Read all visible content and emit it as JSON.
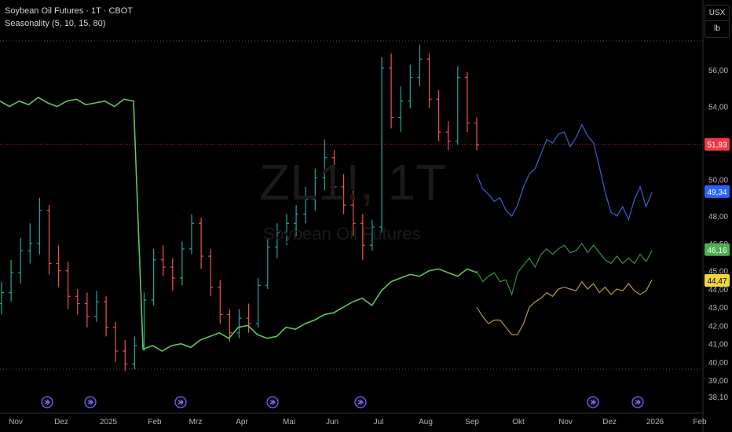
{
  "legend": {
    "line1": "Soybean Oil Futures · 1T · CBOT",
    "line2": "Seasonality  (5, 10, 15, 80)"
  },
  "watermark": {
    "symbol": "ZL1!, 1T",
    "name": "Soybean Oil Futures"
  },
  "units": {
    "currency": "USX",
    "unit": "lb"
  },
  "chart_data": {
    "type": "line",
    "ylim": [
      37.8,
      57.6
    ],
    "y_ticks": [
      "56,00",
      "54,00",
      "52,00",
      "50,00",
      "48,00",
      "46,50",
      "45,00",
      "44,00",
      "43,00",
      "42,00",
      "41,00",
      "40,00",
      "39,00",
      "38,10"
    ],
    "x_ticks": [
      "Nov",
      "Dez",
      "2025",
      "Feb",
      "Mrz",
      "Apr",
      "Mai",
      "Jun",
      "Jul",
      "Aug",
      "Sep",
      "Okt",
      "Nov",
      "Dez",
      "2026",
      "Feb"
    ],
    "price_labels": [
      {
        "value": 51.93,
        "text": "51,93",
        "color": "#f23645"
      },
      {
        "value": 49.34,
        "text": "49,34",
        "color": "#2962ff"
      },
      {
        "value": 46.16,
        "text": "46,16",
        "color": "#4caf50"
      },
      {
        "value": 44.47,
        "text": "44,47",
        "color": "#f5d63a"
      }
    ],
    "series": [
      {
        "kind": "ohlc",
        "values": [
          [
            43.2,
            44.4,
            42.6,
            43.8
          ],
          [
            43.8,
            45.6,
            43.3,
            44.9
          ],
          [
            44.9,
            46.8,
            44.3,
            46.1
          ],
          [
            46.1,
            47.6,
            45.4,
            46.5
          ],
          [
            46.5,
            49.0,
            45.9,
            48.3
          ],
          [
            48.3,
            48.6,
            44.8,
            45.4
          ],
          [
            45.4,
            46.4,
            44.1,
            45.0
          ],
          [
            45.0,
            45.5,
            42.9,
            43.6
          ],
          [
            43.6,
            44.0,
            42.6,
            43.2
          ],
          [
            43.2,
            43.8,
            41.9,
            42.5
          ],
          [
            42.5,
            43.9,
            42.2,
            43.3
          ],
          [
            43.3,
            43.6,
            41.4,
            41.9
          ],
          [
            41.9,
            42.2,
            40.0,
            40.6
          ],
          [
            40.6,
            41.2,
            39.5,
            39.9
          ],
          [
            39.9,
            41.4,
            39.6,
            40.9
          ],
          [
            40.9,
            43.8,
            40.6,
            43.4
          ],
          [
            43.4,
            46.2,
            43.1,
            45.6
          ],
          [
            45.6,
            46.4,
            44.7,
            45.2
          ],
          [
            45.2,
            45.7,
            43.9,
            44.6
          ],
          [
            44.6,
            46.6,
            44.2,
            46.2
          ],
          [
            46.2,
            48.1,
            45.9,
            47.6
          ],
          [
            47.6,
            47.9,
            45.1,
            45.8
          ],
          [
            45.8,
            46.2,
            43.6,
            44.1
          ],
          [
            44.1,
            44.5,
            42.1,
            42.6
          ],
          [
            42.6,
            42.9,
            41.1,
            41.6
          ],
          [
            41.6,
            42.9,
            41.3,
            42.4
          ],
          [
            42.4,
            43.2,
            41.6,
            42.1
          ],
          [
            42.1,
            44.6,
            41.9,
            44.2
          ],
          [
            44.2,
            46.8,
            44.0,
            46.3
          ],
          [
            46.3,
            47.6,
            45.7,
            47.1
          ],
          [
            47.1,
            48.1,
            46.4,
            47.6
          ],
          [
            47.6,
            48.6,
            46.9,
            48.1
          ],
          [
            48.1,
            49.6,
            47.6,
            48.9
          ],
          [
            48.9,
            50.6,
            48.3,
            50.1
          ],
          [
            50.1,
            52.2,
            49.4,
            51.2
          ],
          [
            51.2,
            51.6,
            48.9,
            49.6
          ],
          [
            49.6,
            50.3,
            48.1,
            48.6
          ],
          [
            48.6,
            49.4,
            46.9,
            47.6
          ],
          [
            47.6,
            48.1,
            45.6,
            46.4
          ],
          [
            46.4,
            47.8,
            46.1,
            47.4
          ],
          [
            47.4,
            56.7,
            47.1,
            56.1
          ],
          [
            56.1,
            56.9,
            52.8,
            53.4
          ],
          [
            53.4,
            55.1,
            52.6,
            54.3
          ],
          [
            54.3,
            56.3,
            53.9,
            55.6
          ],
          [
            55.6,
            57.4,
            55.1,
            56.6
          ],
          [
            56.6,
            56.9,
            53.9,
            54.4
          ],
          [
            54.4,
            54.9,
            52.1,
            52.6
          ],
          [
            52.6,
            53.2,
            51.6,
            52.1
          ],
          [
            52.1,
            56.2,
            51.9,
            55.6
          ],
          [
            55.6,
            55.9,
            52.6,
            53.1
          ],
          [
            53.1,
            53.4,
            51.6,
            51.9
          ]
        ]
      },
      {
        "name": "",
        "color": "#5cc85e",
        "values": [
          54.3,
          54.0,
          54.3,
          54.1,
          54.5,
          54.2,
          54.0,
          54.3,
          54.4,
          54.1,
          54.2,
          54.3,
          54.0,
          54.4,
          54.3,
          40.7,
          40.9,
          40.6,
          40.9,
          41.0,
          40.8,
          41.2,
          41.4,
          41.6,
          41.3,
          41.9,
          42.0,
          41.5,
          41.3,
          41.4,
          41.9,
          41.8,
          42.1,
          42.3,
          42.6,
          42.7,
          43.0,
          43.3,
          43.5,
          43.1,
          43.9,
          44.4,
          44.6,
          44.8,
          44.7,
          45.0,
          45.1,
          44.9,
          44.7,
          45.1,
          44.9
        ]
      },
      {
        "name": "",
        "color": "#3f5fd6",
        "values": [
          50.3,
          49.5,
          49.2,
          48.8,
          49.0,
          48.3,
          48.0,
          48.6,
          49.6,
          50.3,
          50.6,
          51.4,
          52.2,
          52.0,
          52.5,
          52.6,
          51.8,
          52.3,
          53.0,
          52.4,
          52.0,
          50.7,
          49.3,
          48.2,
          48.0,
          48.5,
          47.8,
          48.9,
          49.6,
          48.5,
          49.3
        ]
      },
      {
        "name": "",
        "color": "#3f8f3f",
        "values": [
          45.0,
          44.4,
          44.7,
          44.9,
          44.4,
          44.5,
          43.7,
          44.9,
          45.3,
          45.7,
          45.2,
          45.9,
          46.2,
          45.9,
          46.2,
          46.4,
          46.0,
          46.1,
          46.5,
          46.0,
          46.4,
          46.0,
          45.6,
          45.4,
          45.8,
          45.4,
          45.7,
          45.4,
          45.9,
          45.5,
          46.1
        ]
      },
      {
        "name": "",
        "color": "#b59d2c",
        "values": [
          43.0,
          42.5,
          42.1,
          42.3,
          42.3,
          41.9,
          41.5,
          41.5,
          42.1,
          43.0,
          43.3,
          43.5,
          43.8,
          43.6,
          44.0,
          44.1,
          44.0,
          43.9,
          44.4,
          44.0,
          44.3,
          43.8,
          44.1,
          43.7,
          44.0,
          43.9,
          44.3,
          43.9,
          43.7,
          43.9,
          44.5
        ]
      }
    ],
    "event_markers": 8
  }
}
